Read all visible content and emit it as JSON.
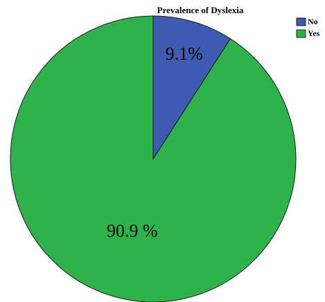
{
  "chart_data": {
    "type": "pie",
    "title": "Prevalence of Dyslexia",
    "categories": [
      "No",
      "Yes"
    ],
    "values": [
      9.1,
      90.9
    ],
    "labels": [
      "9.1%",
      "90.9 %"
    ],
    "colors": [
      "#3F5BB1",
      "#2DB34A"
    ],
    "legend_position": "top-right",
    "start_angle_deg": 0,
    "direction": "clockwise"
  }
}
